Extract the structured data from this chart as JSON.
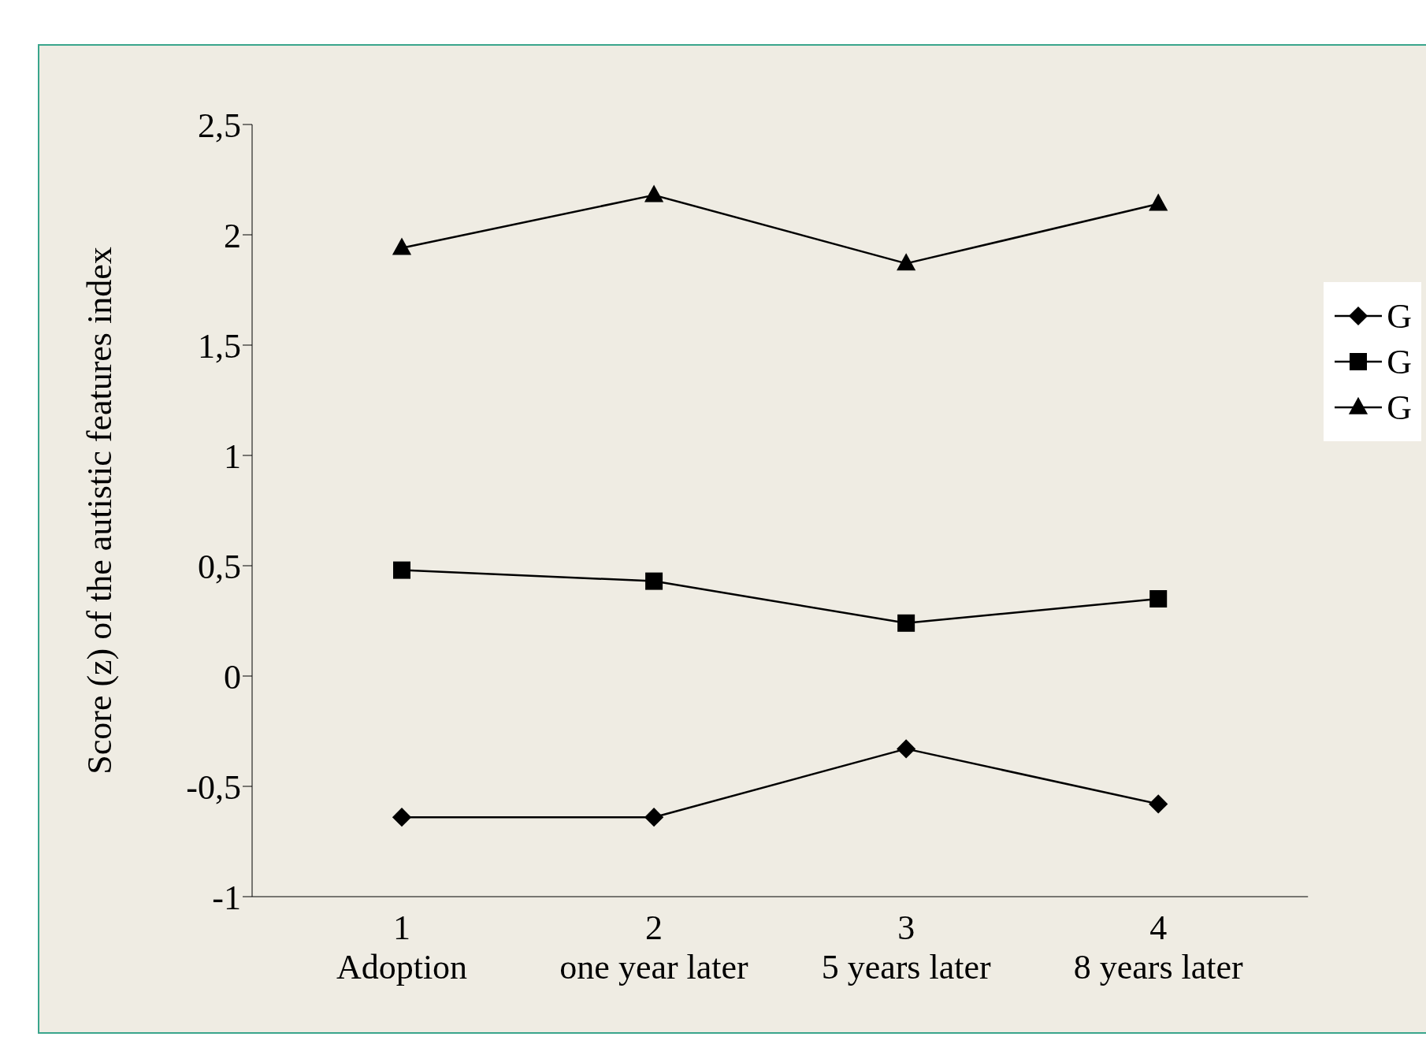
{
  "chart_data": {
    "type": "line",
    "ylabel": "Score (z) of the autistic features index",
    "categories": [
      "1\nAdoption",
      "2\none year later",
      "3\n5 years later",
      "4\n8 years later"
    ],
    "series": [
      {
        "name": "G",
        "color": "#000000",
        "marker": "diamond",
        "values": [
          -0.64,
          -0.64,
          -0.33,
          -0.58
        ]
      },
      {
        "name": "G",
        "color": "#000000",
        "marker": "square",
        "values": [
          0.48,
          0.43,
          0.24,
          0.35
        ]
      },
      {
        "name": "G",
        "color": "#000000",
        "marker": "triangle",
        "values": [
          1.94,
          2.18,
          1.87,
          2.14
        ]
      }
    ],
    "ylim": [
      -1,
      2.5
    ],
    "yticks": [
      -1,
      {
        "value": -0.5,
        "label": "-0,5"
      },
      0,
      {
        "value": 0.5,
        "label": "0,5"
      },
      1,
      {
        "value": 1.5,
        "label": "1,5"
      },
      2,
      {
        "value": 2.5,
        "label": "2,5"
      }
    ],
    "grid": false,
    "legend": "right",
    "line_style": "solid"
  }
}
